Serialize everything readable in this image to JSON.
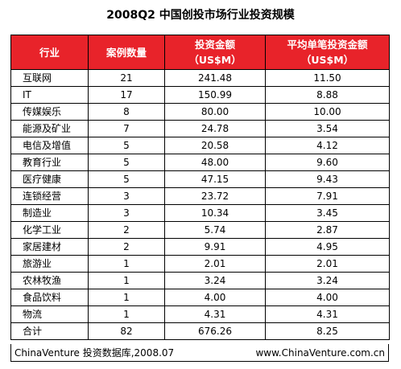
{
  "chart_data": {
    "type": "table",
    "title": "2008Q2 中国创投市场行业投资规模",
    "columns": [
      "行业",
      "案例数量",
      "投资金额（US$M）",
      "平均单笔投资金额（US$M）"
    ],
    "header": {
      "col1": "行业",
      "col2": "案例数量",
      "col3_line1": "投资金额",
      "col3_line2": "（US$M）",
      "col4_line1": "平均单笔投资金额",
      "col4_line2": "（US$M）"
    },
    "rows": [
      {
        "industry": "互联网",
        "count": "21",
        "amount": "241.48",
        "avg": "11.50"
      },
      {
        "industry": "IT",
        "count": "17",
        "amount": "150.99",
        "avg": "8.88"
      },
      {
        "industry": "传媒娱乐",
        "count": "8",
        "amount": "80.00",
        "avg": "10.00"
      },
      {
        "industry": "能源及矿业",
        "count": "7",
        "amount": "24.78",
        "avg": "3.54"
      },
      {
        "industry": "电信及增值",
        "count": "5",
        "amount": "20.58",
        "avg": "4.12"
      },
      {
        "industry": "教育行业",
        "count": "5",
        "amount": "48.00",
        "avg": "9.60"
      },
      {
        "industry": "医疗健康",
        "count": "5",
        "amount": "47.15",
        "avg": "9.43"
      },
      {
        "industry": "连锁经营",
        "count": "3",
        "amount": "23.72",
        "avg": "7.91"
      },
      {
        "industry": "制造业",
        "count": "3",
        "amount": "10.34",
        "avg": "3.45"
      },
      {
        "industry": "化学工业",
        "count": "2",
        "amount": "5.74",
        "avg": "2.87"
      },
      {
        "industry": "家居建材",
        "count": "2",
        "amount": "9.91",
        "avg": "4.95"
      },
      {
        "industry": "旅游业",
        "count": "1",
        "amount": "2.01",
        "avg": "2.01"
      },
      {
        "industry": "农林牧渔",
        "count": "1",
        "amount": "3.24",
        "avg": "3.24"
      },
      {
        "industry": "食品饮料",
        "count": "1",
        "amount": "4.00",
        "avg": "4.00"
      },
      {
        "industry": "物流",
        "count": "1",
        "amount": "4.31",
        "avg": "4.31"
      }
    ],
    "total": {
      "industry": "合计",
      "count": "82",
      "amount": "676.26",
      "avg": "8.25"
    },
    "source": "ChinaVenture 投资数据库,2008.07",
    "website": "www.ChinaVenture.com.cn",
    "header_color": "#e8232a"
  }
}
